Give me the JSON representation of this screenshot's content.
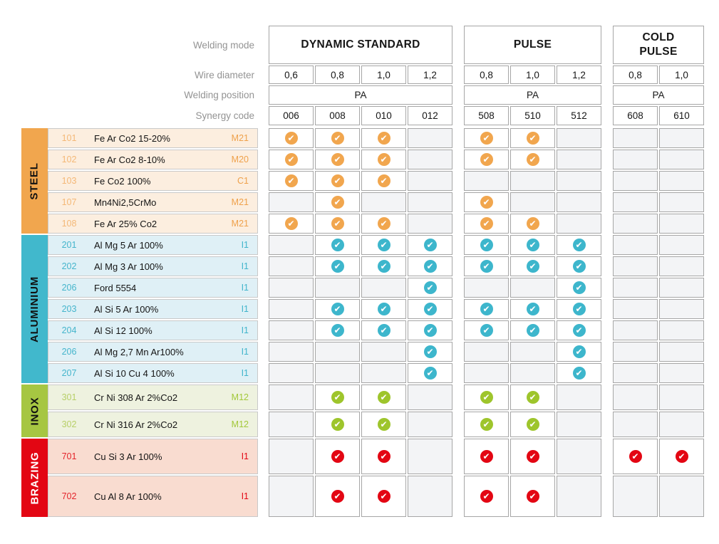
{
  "header": {
    "labels": {
      "mode": "Welding mode",
      "diameter": "Wire diameter",
      "position": "Welding position",
      "code": "Synergy code"
    }
  },
  "modes": [
    {
      "name": "DYNAMIC STANDARD",
      "diameters": [
        "0,6",
        "0,8",
        "1,0",
        "1,2"
      ],
      "position": "PA",
      "codes": [
        "006",
        "008",
        "010",
        "012"
      ]
    },
    {
      "name": "PULSE",
      "diameters": [
        "0,8",
        "1,0",
        "1,2"
      ],
      "position": "PA",
      "codes": [
        "508",
        "510",
        "512"
      ]
    },
    {
      "name": "COLD PULSE",
      "diameters": [
        "0,8",
        "1,0"
      ],
      "position": "PA",
      "codes": [
        "608",
        "610"
      ]
    }
  ],
  "sections": [
    {
      "label": "STEEL",
      "accent": "#F1A64E",
      "row_bg": "#FCEEDF",
      "check_color": "#F1A64E",
      "num_color": "#F4B877",
      "gas_color": "#EFA14B",
      "label_color": "#111111",
      "rows": [
        {
          "code": "101",
          "name": "Fe Ar Co2 15-20%",
          "gas": "M21",
          "checks": {
            "dynamic_standard": [
              1,
              1,
              1,
              0
            ],
            "pulse": [
              1,
              1,
              0
            ],
            "cold_pulse": [
              0,
              0
            ]
          }
        },
        {
          "code": "102",
          "name": "Fe Ar Co2 8-10%",
          "gas": "M20",
          "checks": {
            "dynamic_standard": [
              1,
              1,
              1,
              0
            ],
            "pulse": [
              1,
              1,
              0
            ],
            "cold_pulse": [
              0,
              0
            ]
          }
        },
        {
          "code": "103",
          "name": "Fe Co2 100%",
          "gas": "C1",
          "checks": {
            "dynamic_standard": [
              1,
              1,
              1,
              0
            ],
            "pulse": [
              0,
              0,
              0
            ],
            "cold_pulse": [
              0,
              0
            ]
          }
        },
        {
          "code": "107",
          "name": "Mn4Ni2,5CrMo",
          "gas": "M21",
          "checks": {
            "dynamic_standard": [
              0,
              1,
              0,
              0
            ],
            "pulse": [
              1,
              0,
              0
            ],
            "cold_pulse": [
              0,
              0
            ]
          }
        },
        {
          "code": "108",
          "name": "Fe Ar 25% Co2",
          "gas": "M21",
          "checks": {
            "dynamic_standard": [
              1,
              1,
              1,
              0
            ],
            "pulse": [
              1,
              1,
              0
            ],
            "cold_pulse": [
              0,
              0
            ]
          }
        }
      ]
    },
    {
      "label": "ALUMINIUM",
      "accent": "#41B8CC",
      "row_bg": "#DFF0F6",
      "check_color": "#3DB6CC",
      "num_color": "#45B5CC",
      "gas_color": "#3FB4CB",
      "label_color": "#111111",
      "rows": [
        {
          "code": "201",
          "name": "Al Mg 5 Ar 100%",
          "gas": "I1",
          "checks": {
            "dynamic_standard": [
              0,
              1,
              1,
              1
            ],
            "pulse": [
              1,
              1,
              1
            ],
            "cold_pulse": [
              0,
              0
            ]
          }
        },
        {
          "code": "202",
          "name": "Al Mg 3 Ar 100%",
          "gas": "I1",
          "checks": {
            "dynamic_standard": [
              0,
              1,
              1,
              1
            ],
            "pulse": [
              1,
              1,
              1
            ],
            "cold_pulse": [
              0,
              0
            ]
          }
        },
        {
          "code": "206",
          "name": "Ford 5554",
          "gas": "I1",
          "checks": {
            "dynamic_standard": [
              0,
              0,
              0,
              1
            ],
            "pulse": [
              0,
              0,
              1
            ],
            "cold_pulse": [
              0,
              0
            ]
          }
        },
        {
          "code": "203",
          "name": "Al Si 5 Ar 100%",
          "gas": "I1",
          "checks": {
            "dynamic_standard": [
              0,
              1,
              1,
              1
            ],
            "pulse": [
              1,
              1,
              1
            ],
            "cold_pulse": [
              0,
              0
            ]
          }
        },
        {
          "code": "204",
          "name": "Al Si 12 100%",
          "gas": "I1",
          "checks": {
            "dynamic_standard": [
              0,
              1,
              1,
              1
            ],
            "pulse": [
              1,
              1,
              1
            ],
            "cold_pulse": [
              0,
              0
            ]
          }
        },
        {
          "code": "206",
          "name": "Al Mg 2,7 Mn Ar100%",
          "gas": "I1",
          "checks": {
            "dynamic_standard": [
              0,
              0,
              0,
              1
            ],
            "pulse": [
              0,
              0,
              1
            ],
            "cold_pulse": [
              0,
              0
            ]
          }
        },
        {
          "code": "207",
          "name": "Al Si 10 Cu 4 100%",
          "gas": "I1",
          "checks": {
            "dynamic_standard": [
              0,
              0,
              0,
              1
            ],
            "pulse": [
              0,
              0,
              1
            ],
            "cold_pulse": [
              0,
              0
            ]
          }
        }
      ]
    },
    {
      "label": "INOX",
      "accent": "#A6C642",
      "row_bg": "#EEF2DF",
      "check_color": "#9EC52C",
      "num_color": "#B7CF67",
      "gas_color": "#A3C839",
      "label_color": "#111111",
      "rows": [
        {
          "code": "301",
          "name": "Cr Ni 308 Ar 2%Co2",
          "gas": "M12",
          "checks": {
            "dynamic_standard": [
              0,
              1,
              1,
              0
            ],
            "pulse": [
              1,
              1,
              0
            ],
            "cold_pulse": [
              0,
              0
            ]
          }
        },
        {
          "code": "302",
          "name": "Cr Ni 316 Ar 2%Co2",
          "gas": "M12",
          "checks": {
            "dynamic_standard": [
              0,
              1,
              1,
              0
            ],
            "pulse": [
              1,
              1,
              0
            ],
            "cold_pulse": [
              0,
              0
            ]
          }
        }
      ]
    },
    {
      "label": "BRAZING",
      "accent": "#E30613",
      "row_bg": "#F9DCD0",
      "check_color": "#E30613",
      "num_color": "#E4252B",
      "gas_color": "#E30613",
      "label_color": "#ffffff",
      "rows": [
        {
          "code": "701",
          "name": "Cu Si 3 Ar 100%",
          "gas": "I1",
          "checks": {
            "dynamic_standard": [
              0,
              1,
              1,
              0
            ],
            "pulse": [
              1,
              1,
              0
            ],
            "cold_pulse": [
              1,
              1
            ]
          }
        },
        {
          "code": "702",
          "name": "Cu Al 8 Ar 100%",
          "gas": "I1",
          "checks": {
            "dynamic_standard": [
              0,
              1,
              1,
              0
            ],
            "pulse": [
              1,
              1,
              0
            ],
            "cold_pulse": [
              0,
              0
            ]
          }
        }
      ]
    }
  ],
  "colors": {
    "page_bg": "#ffffff",
    "empty_cell": "#f3f4f6",
    "cell_border": "#a6a6a6",
    "header_label": "#939393",
    "check_glyph": "✔"
  }
}
